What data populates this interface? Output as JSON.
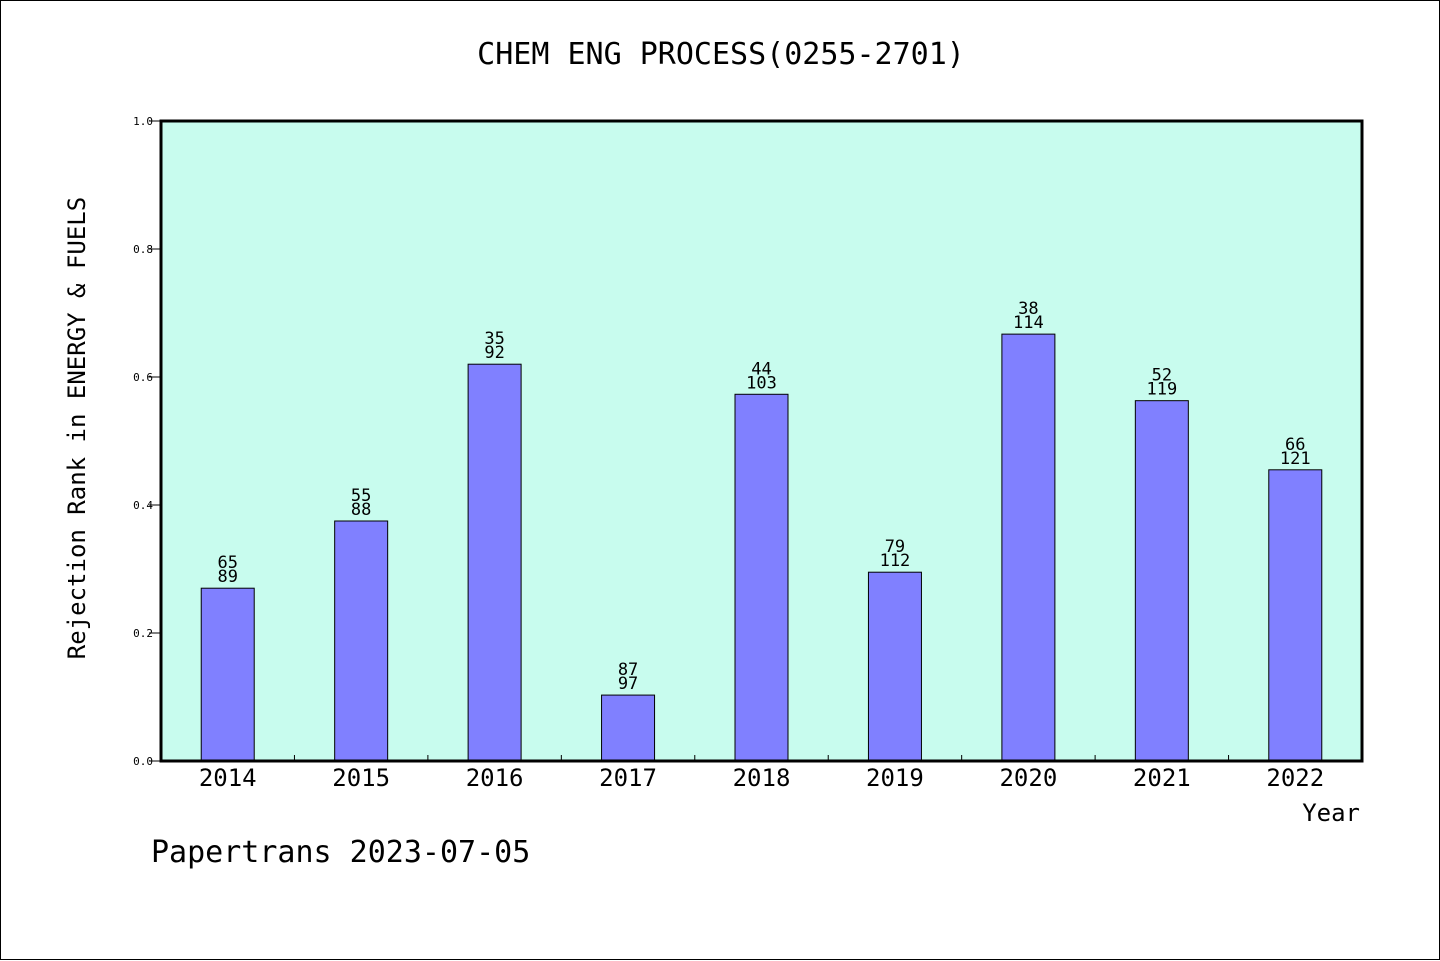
{
  "chart_data": {
    "type": "bar",
    "title": "CHEM ENG PROCESS(0255-2701)",
    "xlabel": "Year",
    "ylabel": "Rejection Rank in ENERGY & FUELS",
    "ylim": [
      0,
      1.0
    ],
    "yticks": [
      "0.0",
      "0.2",
      "0.4",
      "0.6",
      "0.8",
      "1.0"
    ],
    "grid": false,
    "categories": [
      "2014",
      "2015",
      "2016",
      "2017",
      "2018",
      "2019",
      "2020",
      "2021",
      "2022"
    ],
    "values": [
      0.27,
      0.375,
      0.62,
      0.103,
      0.573,
      0.295,
      0.667,
      0.563,
      0.455
    ],
    "labels_top": [
      "65",
      "55",
      "35",
      "87",
      "44",
      "79",
      "38",
      "52",
      "66"
    ],
    "labels_bottom": [
      "89",
      "88",
      "92",
      "97",
      "103",
      "112",
      "114",
      "119",
      "121"
    ],
    "colors": {
      "bar": "#8080ff",
      "plot_background": "#c8fcee",
      "frame": "#000000"
    }
  },
  "footer": "Papertrans 2023-07-05"
}
